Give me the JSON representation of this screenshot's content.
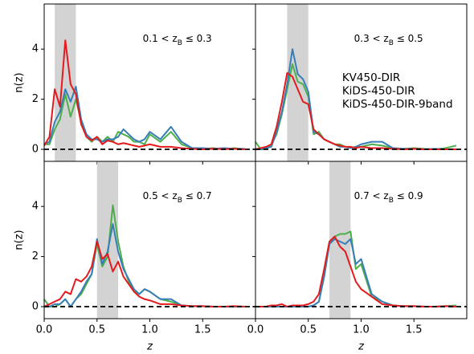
{
  "chart_data": [
    {
      "type": "line",
      "annotation": [
        "0.1 < z",
        "B",
        " ≤ 0.3"
      ],
      "zb_range": [
        0.1,
        0.3
      ],
      "x": [
        0,
        0.05,
        0.1,
        0.15,
        0.2,
        0.25,
        0.3,
        0.35,
        0.4,
        0.45,
        0.5,
        0.55,
        0.6,
        0.65,
        0.7,
        0.75,
        0.8,
        0.85,
        0.9,
        0.95,
        1.0,
        1.1,
        1.2,
        1.3,
        1.4,
        1.5,
        1.6,
        1.7,
        1.8,
        1.9
      ],
      "series": [
        {
          "name": "KV450-DIR",
          "color": "#e41a1c",
          "values": [
            0.15,
            0.5,
            2.4,
            1.7,
            4.35,
            2.6,
            2.2,
            1.0,
            0.5,
            0.35,
            0.5,
            0.2,
            0.35,
            0.3,
            0.2,
            0.25,
            0.2,
            0.15,
            0.1,
            0.15,
            0.2,
            0.1,
            0.1,
            0.05,
            0.02,
            0,
            0.02,
            0.01,
            0.02,
            0
          ]
        },
        {
          "name": "KiDS-450-DIR",
          "color": "#377eb8",
          "values": [
            0.2,
            0.3,
            1.1,
            1.5,
            2.4,
            1.9,
            2.5,
            1.2,
            0.6,
            0.4,
            0.4,
            0.3,
            0.4,
            0.4,
            0.5,
            0.8,
            0.6,
            0.4,
            0.3,
            0.4,
            0.7,
            0.4,
            0.9,
            0.3,
            0.05,
            0.05,
            0.02,
            0.05,
            0.02,
            0.02
          ]
        },
        {
          "name": "KiDS-450-DIR-9band",
          "color": "#4daf4a",
          "values": [
            0.2,
            0.2,
            0.8,
            1.2,
            2.2,
            1.3,
            2.0,
            1.1,
            0.5,
            0.3,
            0.5,
            0.3,
            0.5,
            0.3,
            0.7,
            0.6,
            0.5,
            0.3,
            0.3,
            0.2,
            0.6,
            0.3,
            0.7,
            0.2,
            0.05,
            0.02,
            0.05,
            0,
            0.05,
            0
          ]
        }
      ],
      "xlim": [
        0,
        2.0
      ],
      "ylim": [
        -0.48,
        5.8
      ],
      "yticks": [
        0,
        2,
        4
      ],
      "xticks": [
        {
          "value": 0,
          "label": "0.0"
        },
        0.5,
        {
          "value": 1,
          "label": "1.0"
        },
        1.5
      ],
      "ylabel": "n(z)",
      "xtick_labels": false,
      "ytick_labels": true,
      "zero_line": true
    },
    {
      "type": "line",
      "annotation": [
        "0.3 < z",
        "B",
        " ≤ 0.5"
      ],
      "zb_range": [
        0.3,
        0.5
      ],
      "x": [
        0,
        0.05,
        0.1,
        0.15,
        0.2,
        0.25,
        0.3,
        0.35,
        0.4,
        0.45,
        0.5,
        0.55,
        0.6,
        0.65,
        0.7,
        0.75,
        0.8,
        0.85,
        0.9,
        0.95,
        1.0,
        1.1,
        1.2,
        1.3,
        1.4,
        1.5,
        1.6,
        1.7,
        1.8,
        1.9
      ],
      "series": [
        {
          "name": "KV450-DIR",
          "color": "#e41a1c",
          "values": [
            0,
            0.05,
            0.1,
            0.2,
            0.9,
            1.9,
            3.05,
            2.9,
            2.4,
            1.9,
            1.8,
            0.8,
            0.6,
            0.4,
            0.3,
            0.2,
            0.15,
            0.1,
            0.1,
            0.05,
            0.1,
            0.05,
            0.05,
            0.02,
            0,
            0.02,
            0,
            0,
            0,
            0
          ]
        },
        {
          "name": "KiDS-450-DIR",
          "color": "#377eb8",
          "values": [
            0,
            0,
            0.05,
            0.1,
            0.7,
            1.5,
            2.6,
            4.0,
            3.0,
            2.8,
            2.3,
            0.7,
            0.6,
            0.4,
            0.3,
            0.2,
            0.1,
            0.1,
            0.05,
            0.1,
            0.2,
            0.3,
            0.3,
            0.05,
            0.02,
            0.02,
            0,
            0.02,
            0,
            0
          ]
        },
        {
          "name": "KiDS-450-DIR-9band",
          "color": "#4daf4a",
          "values": [
            0.3,
            0,
            0,
            0.2,
            0.6,
            1.4,
            2.4,
            3.4,
            2.7,
            2.6,
            2.1,
            0.6,
            0.7,
            0.4,
            0.3,
            0.2,
            0.2,
            0.1,
            0.05,
            0.1,
            0.1,
            0.2,
            0.15,
            0.05,
            0.02,
            0.05,
            0.02,
            0,
            0.05,
            0.15
          ]
        }
      ],
      "xlim": [
        0,
        2.0
      ],
      "ylim": [
        -0.48,
        5.8
      ],
      "yticks": [
        0,
        2,
        4
      ],
      "xticks": [
        {
          "value": 0,
          "label": "0.0"
        },
        0.5,
        {
          "value": 1,
          "label": "1.0"
        },
        1.5
      ],
      "legend": "upper right",
      "xtick_labels": false,
      "ytick_labels": false,
      "zero_line": true
    },
    {
      "type": "line",
      "annotation": [
        "0.5 < z",
        "B",
        " ≤ 0.7"
      ],
      "zb_range": [
        0.5,
        0.7
      ],
      "x": [
        0,
        0.05,
        0.1,
        0.15,
        0.2,
        0.25,
        0.3,
        0.35,
        0.4,
        0.45,
        0.5,
        0.55,
        0.6,
        0.65,
        0.7,
        0.75,
        0.8,
        0.85,
        0.9,
        0.95,
        1.0,
        1.1,
        1.2,
        1.3,
        1.4,
        1.5,
        1.6,
        1.7,
        1.8,
        1.9
      ],
      "series": [
        {
          "name": "KV450-DIR",
          "color": "#e41a1c",
          "values": [
            0,
            0.1,
            0.2,
            0.3,
            0.6,
            0.5,
            1.1,
            1.0,
            1.2,
            1.6,
            2.6,
            1.9,
            2.1,
            1.4,
            1.8,
            1.2,
            0.9,
            0.6,
            0.4,
            0.3,
            0.25,
            0.1,
            0.1,
            0.05,
            0.02,
            0.02,
            0,
            0,
            0.02,
            0
          ]
        },
        {
          "name": "KiDS-450-DIR",
          "color": "#377eb8",
          "values": [
            0,
            0,
            0.1,
            0.1,
            0.3,
            0,
            0.3,
            0.6,
            1.0,
            1.3,
            2.7,
            1.7,
            2.2,
            3.3,
            2.2,
            1.5,
            1.1,
            0.7,
            0.5,
            0.7,
            0.6,
            0.3,
            0.3,
            0.05,
            0.02,
            0.02,
            0,
            0,
            0,
            0
          ]
        },
        {
          "name": "KiDS-450-DIR-9band",
          "color": "#4daf4a",
          "values": [
            0.3,
            0,
            0,
            0.1,
            0.3,
            0,
            0.3,
            0.5,
            0.9,
            1.3,
            2.5,
            1.6,
            2.0,
            4.05,
            2.6,
            1.6,
            1.0,
            0.6,
            0.5,
            0.7,
            0.6,
            0.3,
            0.2,
            0.05,
            0.02,
            0.02,
            0,
            0,
            0,
            0
          ]
        }
      ],
      "xlim": [
        0,
        2.0
      ],
      "ylim": [
        -0.48,
        5.8
      ],
      "yticks": [
        0,
        2,
        4
      ],
      "xticks": [
        {
          "value": 0,
          "label": "0.0"
        },
        0.5,
        {
          "value": 1,
          "label": "1.0"
        },
        1.5
      ],
      "xlabel": "z",
      "ylabel": "n(z)",
      "xtick_labels": true,
      "ytick_labels": true,
      "zero_line": true
    },
    {
      "type": "line",
      "annotation": [
        "0.7 < z",
        "B",
        " ≤ 0.9"
      ],
      "zb_range": [
        0.7,
        0.9
      ],
      "x": [
        0,
        0.05,
        0.1,
        0.15,
        0.2,
        0.25,
        0.3,
        0.35,
        0.4,
        0.45,
        0.5,
        0.55,
        0.6,
        0.65,
        0.7,
        0.75,
        0.8,
        0.85,
        0.9,
        0.95,
        1.0,
        1.1,
        1.2,
        1.3,
        1.4,
        1.5,
        1.6,
        1.7,
        1.8,
        1.9
      ],
      "series": [
        {
          "name": "KV450-DIR",
          "color": "#e41a1c",
          "values": [
            0,
            0,
            0,
            0.05,
            0.05,
            0.1,
            0,
            0.05,
            0.05,
            0.05,
            0.1,
            0.2,
            0.5,
            1.5,
            2.6,
            2.8,
            2.4,
            2.2,
            1.6,
            1.0,
            0.7,
            0.4,
            0.1,
            0.05,
            0.02,
            0.02,
            0,
            0,
            0.02,
            0
          ]
        },
        {
          "name": "KiDS-450-DIR",
          "color": "#377eb8",
          "values": [
            0,
            0,
            0,
            0,
            0,
            0,
            0,
            0,
            0,
            0,
            0,
            0.05,
            0.2,
            1.2,
            2.5,
            2.7,
            2.6,
            2.5,
            2.7,
            1.7,
            1.9,
            0.5,
            0.2,
            0.05,
            0.02,
            0.02,
            0,
            0,
            0.02,
            0
          ]
        },
        {
          "name": "KiDS-450-DIR-9band",
          "color": "#4daf4a",
          "values": [
            0,
            0,
            0,
            0,
            0,
            0,
            0,
            0,
            0,
            0,
            0,
            0.05,
            0.2,
            1.2,
            2.5,
            2.8,
            2.9,
            2.9,
            3.0,
            1.5,
            1.7,
            0.4,
            0.2,
            0.05,
            0.02,
            0.02,
            0,
            0,
            0.02,
            0.05
          ]
        }
      ],
      "xlim": [
        0,
        2.0
      ],
      "ylim": [
        -0.48,
        5.8
      ],
      "yticks": [
        0,
        2,
        4
      ],
      "xticks": [
        {
          "value": 0,
          "label": "0.0"
        },
        0.5,
        {
          "value": 1,
          "label": "1.0"
        },
        1.5
      ],
      "xlabel": "z",
      "xtick_labels": true,
      "ytick_labels": false,
      "zero_line": true
    }
  ]
}
